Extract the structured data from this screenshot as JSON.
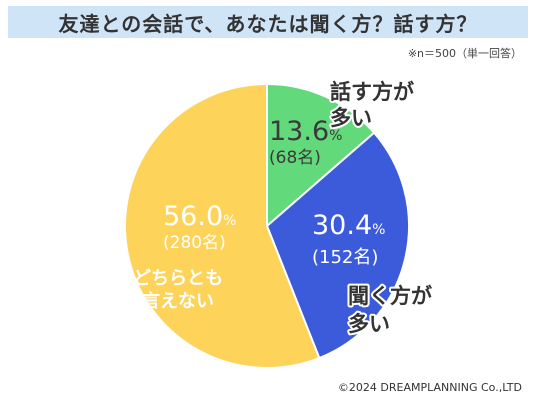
{
  "title": "友達との会話で、あなたは聞く方？話す方？",
  "sample_note": "※n＝500（単一回答）",
  "copyright": "©2024 DREAMPLANNING Co.,LTD",
  "colors": {
    "title_bg": "#cfe4f7",
    "talker": "#62d97a",
    "listener": "#3b5bdb",
    "neither": "#fdd35a",
    "edge": "#ffffff",
    "label_dark": "#3a3a3a"
  },
  "chart_data": {
    "type": "pie",
    "n": 500,
    "slices": [
      {
        "label_lines": [
          "話す方が",
          "多い"
        ],
        "percent": 13.6,
        "percent_text": "13.6",
        "unit": "%",
        "count_text": "(68名)",
        "color": "#62d97a"
      },
      {
        "label_lines": [
          "聞く方が",
          "多い"
        ],
        "percent": 30.4,
        "percent_text": "30.4",
        "unit": "%",
        "count_text": "(152名)",
        "color": "#3b5bdb"
      },
      {
        "label_lines": [
          "どちらとも",
          "言えない"
        ],
        "percent": 56.0,
        "percent_text": "56.0",
        "unit": "%",
        "count_text": "(280名)",
        "color": "#fdd35a"
      }
    ]
  }
}
